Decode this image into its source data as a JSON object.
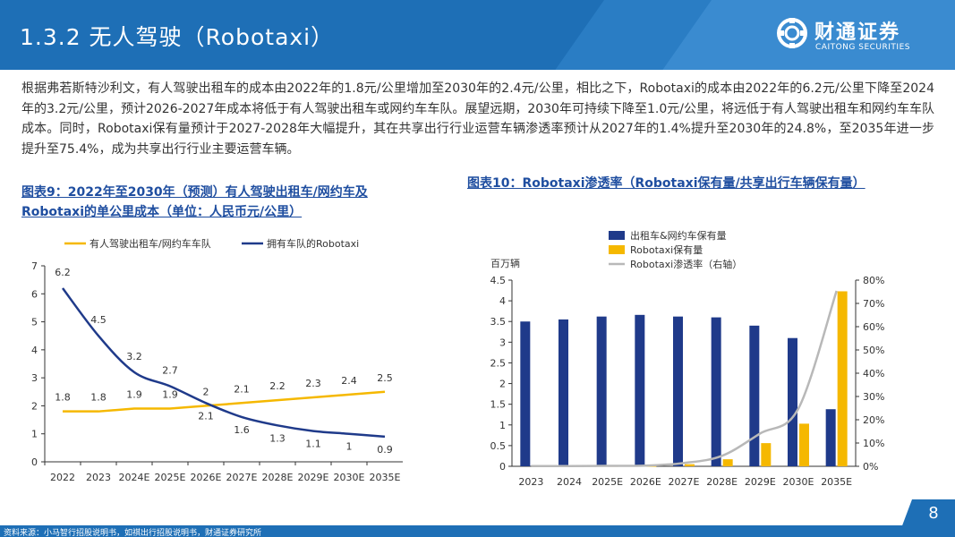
{
  "header": {
    "title": "1.3.2 无人驾驶（Robotaxi）",
    "logo_cn": "财通证券",
    "logo_en": "CAITONG SECURITIES",
    "brand_color": "#1e6fb6"
  },
  "body_text": "根据弗若斯特沙利文，有人驾驶出租车的成本由2022年的1.8元/公里增加至2030年的2.4元/公里，相比之下，Robotaxi的成本由2022年的6.2元/公里下降至2024年的3.2元/公里，预计2026-2027年成本将低于有人驾驶出租车或网约车车队。展望远期，2030年可持续下降至1.0元/公里，将远低于有人驾驶出租车和网约车车队成本。同时，Robotaxi保有量预计于2027-2028年大幅提升，其在共享出行行业运营车辆渗透率预计从2027年的1.4%提升至2030年的24.8%，至2035年进一步提升至75.4%，成为共享出行行业主要运营车辆。",
  "fig9": {
    "title": "图表9：2022年至2030年（预测）有人驾驶出租车/网约车及Robotaxi的单公里成本（单位：人民币元/公里）"
  },
  "fig10": {
    "title": "图表10：Robotaxi渗透率（Robotaxi保有量/共享出行车辆保有量）"
  },
  "chart_data": [
    {
      "type": "line",
      "categories": [
        "2022",
        "2023",
        "2024E",
        "2025E",
        "2026E",
        "2027E",
        "2028E",
        "2029E",
        "2030E",
        "2035E"
      ],
      "series": [
        {
          "name": "有人驾驶出租车/网约车车队",
          "color": "#f5b800",
          "values": [
            1.8,
            1.8,
            1.9,
            1.9,
            2.0,
            2.1,
            2.2,
            2.3,
            2.4,
            2.5
          ]
        },
        {
          "name": "拥有车队的Robotaxi",
          "color": "#1f3a8a",
          "values": [
            6.2,
            4.5,
            3.2,
            2.7,
            2.1,
            1.6,
            1.3,
            1.1,
            1,
            0.9
          ]
        }
      ],
      "ylim": [
        0,
        7
      ],
      "yticks": [
        "0",
        "1",
        "2",
        "3",
        "4",
        "5",
        "6",
        "7"
      ],
      "legend": "top",
      "grid": false
    },
    {
      "type": "bar",
      "categories": [
        "2023",
        "2024",
        "2025E",
        "2026E",
        "2027E",
        "2028E",
        "2029E",
        "2030E",
        "2035E"
      ],
      "series": [
        {
          "name": "出租车&网约车保有量",
          "color": "#1f3a8a",
          "values": [
            3.5,
            3.55,
            3.62,
            3.66,
            3.62,
            3.6,
            3.4,
            3.1,
            1.38
          ]
        },
        {
          "name": "Robotaxi保有量",
          "color": "#f5b800",
          "values": [
            0.01,
            0.01,
            0.01,
            0.01,
            0.05,
            0.17,
            0.56,
            1.03,
            4.23
          ]
        },
        {
          "name": "Robotaxi渗透率（右轴）",
          "color": "#b8b8b8",
          "type": "line",
          "axis": "right",
          "values": [
            0.1,
            0.1,
            0.2,
            0.3,
            1.4,
            4.5,
            14.1,
            24.8,
            75.4
          ]
        }
      ],
      "ylabel": "百万辆",
      "ylim": [
        0,
        4.5
      ],
      "yticks": [
        "0",
        "0.5",
        "1",
        "1.5",
        "2",
        "2.5",
        "3",
        "3.5",
        "4",
        "4.5"
      ],
      "y2lim": [
        0,
        80
      ],
      "y2ticks": [
        "0%",
        "10%",
        "20%",
        "30%",
        "40%",
        "50%",
        "60%",
        "70%",
        "80%"
      ],
      "legend": "top",
      "grid": false
    }
  ],
  "footer": {
    "source": "资料来源：小马智行招股说明书，如祺出行招股说明书，财通证券研究所",
    "page": "8"
  }
}
